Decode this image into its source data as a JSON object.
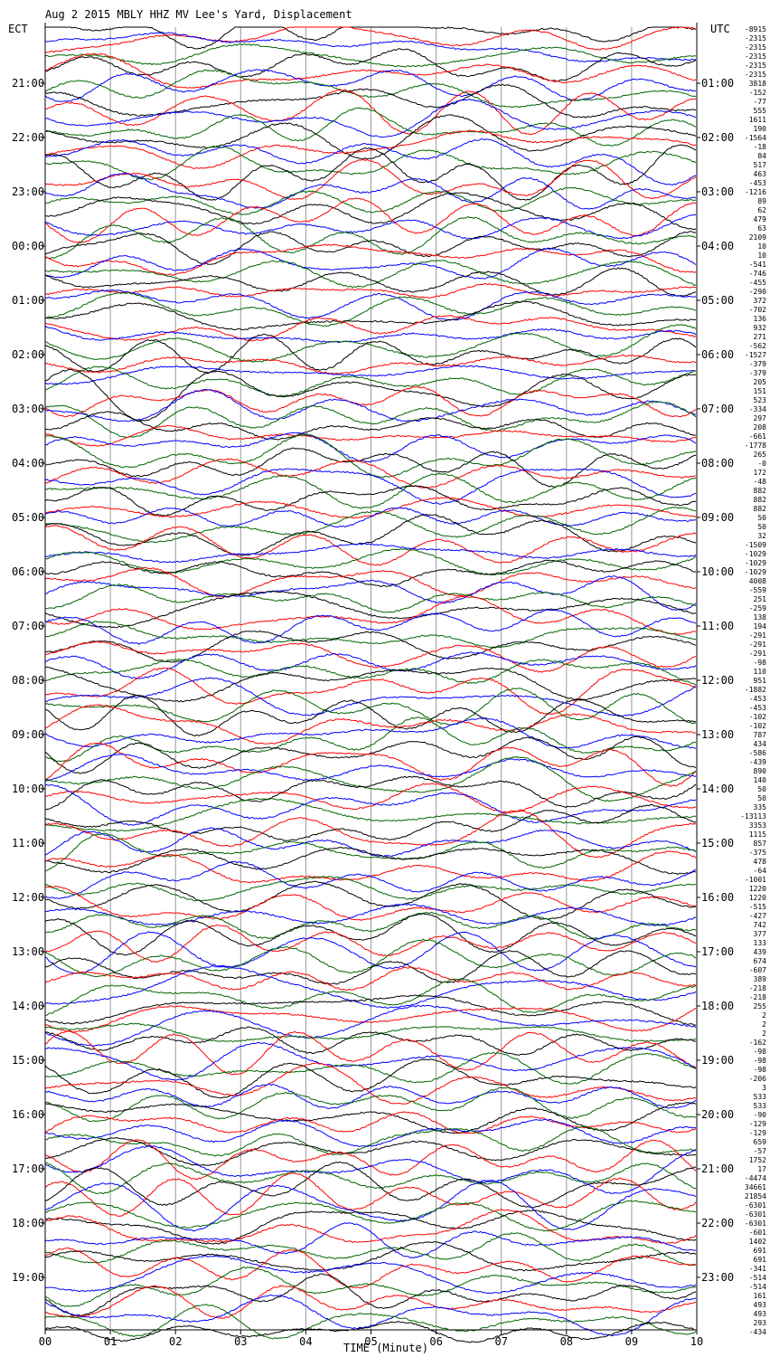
{
  "chart_data": {
    "type": "line",
    "title": "Aug  2 2015 MBLY HHZ MV Lee's Yard, Displacement",
    "left_header": "ECT",
    "right_header": "UTC",
    "xlabel": "TIME (Minute)",
    "x_ticks": [
      "00",
      "01",
      "02",
      "03",
      "04",
      "05",
      "06",
      "07",
      "08",
      "09",
      "10"
    ],
    "xlim": [
      0,
      10
    ],
    "ect_hours": [
      "21:00",
      "22:00",
      "23:00",
      "00:00",
      "01:00",
      "02:00",
      "03:00",
      "04:00",
      "05:00",
      "06:00",
      "07:00",
      "08:00",
      "09:00",
      "10:00",
      "11:00",
      "12:00",
      "13:00",
      "14:00",
      "15:00",
      "16:00",
      "17:00",
      "18:00",
      "19:00"
    ],
    "utc_hours": [
      "01:00",
      "02:00",
      "03:00",
      "04:00",
      "05:00",
      "06:00",
      "07:00",
      "08:00",
      "09:00",
      "10:00",
      "11:00",
      "12:00",
      "13:00",
      "14:00",
      "15:00",
      "16:00",
      "17:00",
      "18:00",
      "19:00",
      "20:00",
      "21:00",
      "22:00",
      "23:00"
    ],
    "traces_per_hour": 6,
    "trace_colors": [
      "#000000",
      "#ff0000",
      "#0000ff",
      "#006400"
    ],
    "trace_scale_values": [
      "-8915",
      "-2315",
      "-2315",
      "-2315",
      "-2315",
      "-2315",
      "3818",
      "-152",
      "-77",
      "555",
      "1611",
      "190",
      "-1564",
      "-18",
      "84",
      "517",
      "463",
      "-453",
      "-1216",
      "89",
      "62",
      "479",
      "63",
      "2109",
      "10",
      "10",
      "-541",
      "-746",
      "-455",
      "-290",
      "372",
      "-702",
      "136",
      "932",
      "271",
      "-562",
      "-1527",
      "-379",
      "-379",
      "205",
      "151",
      "523",
      "-334",
      "297",
      "208",
      "-661",
      "-1778",
      "265",
      "-0",
      "172",
      "-48",
      "882",
      "882",
      "882",
      "50",
      "50",
      "32",
      "-1509",
      "-1029",
      "-1029",
      "-1029",
      "4008",
      "-559",
      "251",
      "-259",
      "138",
      "194",
      "-291",
      "-291",
      "-291",
      "-98",
      "110",
      "951",
      "-1882",
      "-453",
      "-453",
      "-102",
      "-102",
      "787",
      "434",
      "-586",
      "-439",
      "890",
      "140",
      "50",
      "50",
      "335",
      "-13113",
      "3353",
      "1115",
      "857",
      "-375",
      "478",
      "-64",
      "-1001",
      "1220",
      "1220",
      "-515",
      "-427",
      "742",
      "377",
      "133",
      "439",
      "674",
      "-607",
      "389",
      "-218",
      "-218",
      "255",
      "2",
      "2",
      "2",
      "-162",
      "-98",
      "-98",
      "-98",
      "-206",
      "3",
      "533",
      "533",
      "-90",
      "-129",
      "-129",
      "659",
      "-57",
      "1752",
      "17",
      "-4474",
      "34661",
      "21854",
      "-6301",
      "-6301",
      "-6301",
      "-601",
      "1402",
      "691",
      "691",
      "-341",
      "-514",
      "-514",
      "161",
      "493",
      "493",
      "293",
      "-434"
    ]
  }
}
